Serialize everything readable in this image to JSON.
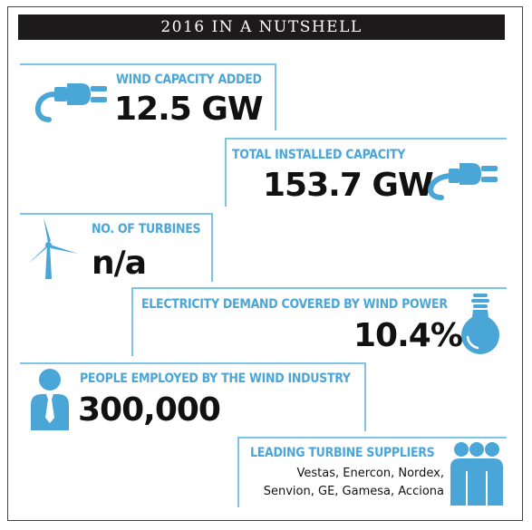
{
  "title": "2016 IN A NUTSHELL",
  "accent_color": "#4ba6d8",
  "stats": {
    "wind_capacity": {
      "label": "WIND CAPACITY ADDED",
      "value": "12.5 GW",
      "icon": "power-plug-icon"
    },
    "total_capacity": {
      "label": "TOTAL INSTALLED CAPACITY",
      "value": "153.7 GW",
      "icon": "power-plug-icon"
    },
    "turbines": {
      "label": "NO. OF TURBINES",
      "value": "n/a",
      "icon": "wind-turbine-icon"
    },
    "demand": {
      "label": "ELECTRICITY DEMAND COVERED BY WIND POWER",
      "value": "10.4%",
      "icon": "light-bulb-icon"
    },
    "employed": {
      "label": "PEOPLE EMPLOYED BY THE WIND INDUSTRY",
      "value": "300,000",
      "icon": "person-icon"
    },
    "suppliers": {
      "label": "LEADING TURBINE SUPPLIERS",
      "line1": "Vestas, Enercon, Nordex,",
      "line2": "Senvion, GE, Gamesa, Acciona",
      "icon": "group-of-people-icon"
    }
  }
}
